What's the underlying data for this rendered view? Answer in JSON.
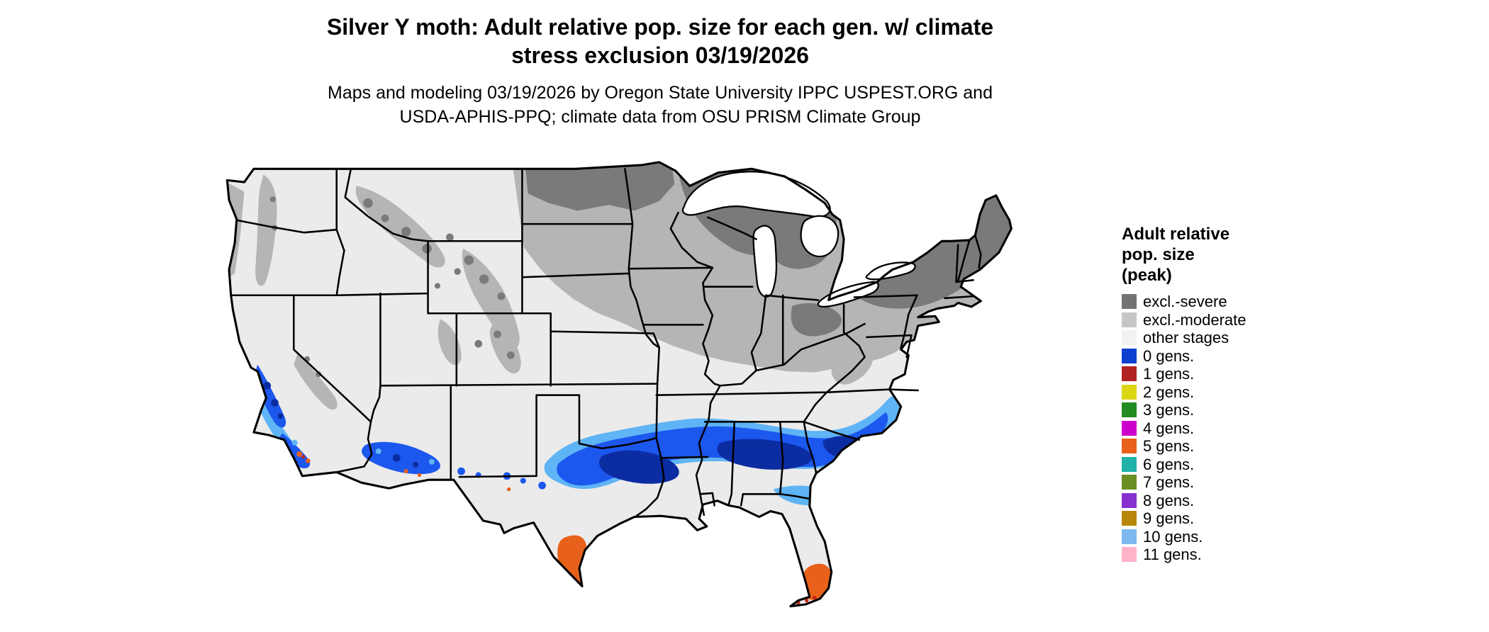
{
  "header": {
    "title_line1": "Silver Y moth: Adult relative pop. size for each gen. w/ climate",
    "title_line2": "stress exclusion 03/19/2026",
    "subtitle_line1": "Maps and modeling 03/19/2026 by Oregon State University IPPC USPEST.ORG and",
    "subtitle_line2": "USDA-APHIS-PPQ; climate data from OSU PRISM Climate Group"
  },
  "legend": {
    "title_lines": [
      "Adult relative",
      "pop. size",
      "(peak)"
    ],
    "items": [
      {
        "label": "excl.-severe",
        "color": "#737373"
      },
      {
        "label": "excl.-moderate",
        "color": "#c6c6c6"
      },
      {
        "label": "other stages",
        "color": "#f2f2f2"
      },
      {
        "label": "0 gens.",
        "color": "#0d41d0"
      },
      {
        "label": "1 gens.",
        "color": "#b22222"
      },
      {
        "label": "2 gens.",
        "color": "#ddd615"
      },
      {
        "label": "3 gens.",
        "color": "#228b22"
      },
      {
        "label": "4 gens.",
        "color": "#cc00cc"
      },
      {
        "label": "5 gens.",
        "color": "#e8611a"
      },
      {
        "label": "6 gens.",
        "color": "#20b2aa"
      },
      {
        "label": "7 gens.",
        "color": "#6b8e23"
      },
      {
        "label": "8 gens.",
        "color": "#8631ce"
      },
      {
        "label": "9 gens.",
        "color": "#b8860b"
      },
      {
        "label": "10 gens.",
        "color": "#7db8ef"
      },
      {
        "label": "11 gens.",
        "color": "#ffb3c8"
      }
    ]
  },
  "map": {
    "colors": {
      "background": "#ffffff",
      "other_stages": "#ebebeb",
      "excl_moderate": "#b5b5b5",
      "excl_severe": "#7a7a7a",
      "blue_light": "#5fb4f5",
      "blue_mid": "#1c57ee",
      "blue_dark": "#0c2da2",
      "orange": "#e8611a",
      "red": "#c92313",
      "water": "#ffffff",
      "border": "#000000"
    }
  }
}
